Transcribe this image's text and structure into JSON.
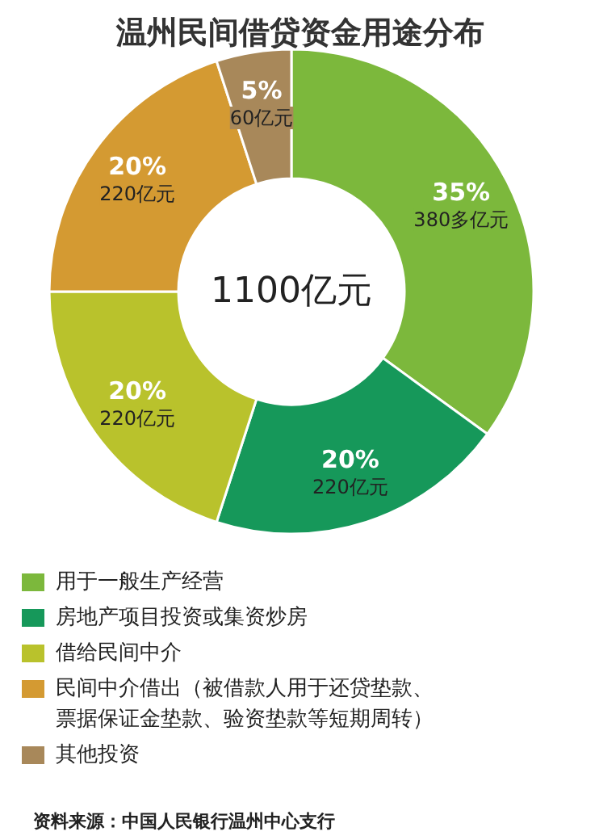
{
  "chart_data": {
    "type": "donut",
    "title": "温州民间借贷资金用途分布",
    "categories": [
      "用于一般生产经营",
      "房地产项目投资或集资炒房",
      "借给民间中介",
      "民间中介借出（被借款人用于还贷垫款、票据保证金垫款、验资垫款等短期周转）",
      "其他投资"
    ],
    "values": [
      35,
      20,
      20,
      20,
      5
    ],
    "colors": [
      "#7cb83c",
      "#16985a",
      "#b9c22c",
      "#d49a32",
      "#a8885a"
    ],
    "value_labels": [
      "35%\n380多亿元",
      "20%\n220亿元",
      "20%\n220亿元",
      "20%\n220亿元",
      "5%\n60亿元"
    ],
    "annotations": [
      "1100亿元",
      "资料来源：中国人民银行温州中心支行"
    ],
    "legend": "bottom"
  }
}
